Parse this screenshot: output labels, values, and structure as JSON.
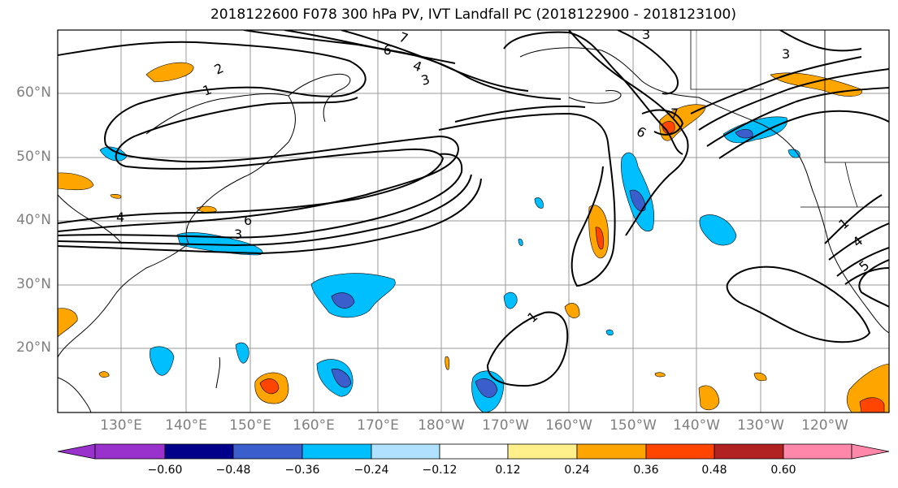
{
  "title": "2018122600 F078 300 hPa PV, IVT Landfall PC (2018122900 - 2018123100)",
  "lat_labels": [
    "60°N",
    "50°N",
    "40°N",
    "30°N",
    "20°N"
  ],
  "lon_labels": [
    "130°E",
    "140°E",
    "150°E",
    "160°E",
    "170°E",
    "180°W",
    "170°W",
    "160°W",
    "150°W",
    "140°W",
    "130°W",
    "120°W"
  ],
  "colorbar": {
    "ticks": [
      "−0.60",
      "−0.48",
      "−0.36",
      "−0.24",
      "−0.12",
      "0.12",
      "0.24",
      "0.36",
      "0.48",
      "0.60"
    ],
    "colors": [
      "#9932cc",
      "#00008b",
      "#3a5fcd",
      "#00bfff",
      "#b0e2ff",
      "#ffffff",
      "#fff08c",
      "#ffa500",
      "#ff4500",
      "#b22222",
      "#ff88aa"
    ]
  },
  "contour_labels": [
    "2",
    "1",
    "6",
    "7",
    "3",
    "4",
    "3",
    "6",
    "4",
    "3",
    "6",
    "3",
    "7",
    "1",
    "1",
    "4",
    "5"
  ],
  "colors": {
    "gray_label": "#7f7f7f",
    "grid": "#9a9a9a",
    "negative_light": "#00bfff",
    "negative_dark": "#3a5fcd",
    "positive_light": "#ffa500",
    "positive_dark": "#ff4500"
  }
}
